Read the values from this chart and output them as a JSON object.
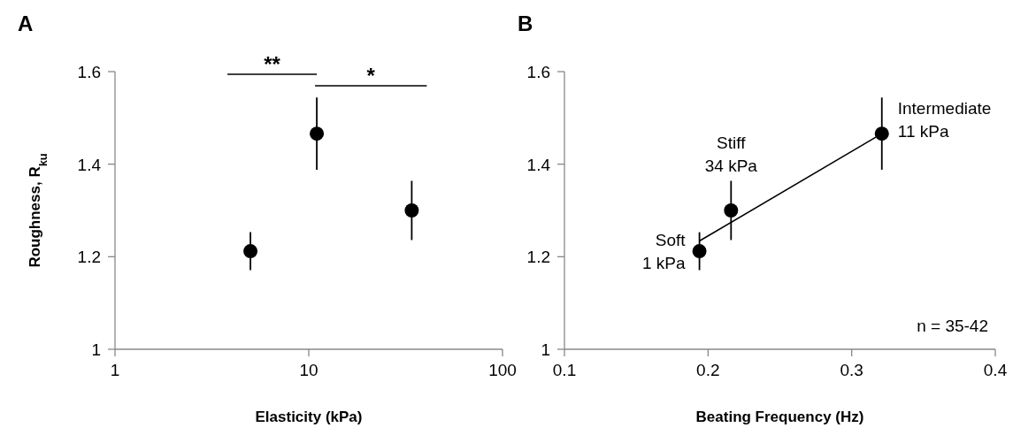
{
  "chart_data": [
    {
      "type": "scatter",
      "title": "A",
      "xlabel": "Elasticity (kPa)",
      "ylabel": "Roughness, R$_{ku}$",
      "log": "x",
      "xlim": [
        1,
        100
      ],
      "xticks": [
        1,
        10,
        100
      ],
      "ylim": [
        1,
        1.6
      ],
      "yticks": [
        1,
        1.2,
        1.4,
        1.6
      ],
      "marker": "circle",
      "grid": false,
      "series": [
        {
          "color": "#000000",
          "x": [
            5,
            11,
            34
          ],
          "values": [
            1.212,
            1.466,
            1.3
          ],
          "errors": [
            0.041,
            0.078,
            0.064
          ]
        }
      ],
      "annotations": [
        "**",
        "*"
      ]
    },
    {
      "type": "scatter",
      "title": "B",
      "xlabel": "Beating Frequency (Hz)",
      "xlim": [
        0.1,
        0.4
      ],
      "xticks": [
        0.1,
        0.2,
        0.3,
        0.4
      ],
      "ylim": [
        1,
        1.6
      ],
      "yticks": [
        1,
        1.2,
        1.4,
        1.6
      ],
      "marker": "circle",
      "grid": false,
      "series": [
        {
          "color": "#000000",
          "x": [
            0.194,
            0.216,
            0.321
          ],
          "values": [
            1.212,
            1.3,
            1.466
          ],
          "errors": [
            0.041,
            0.064,
            0.078
          ]
        },
        {
          "type": "line",
          "color": "#000000",
          "x": [
            0.194,
            0.321
          ],
          "values": [
            1.234,
            1.466
          ],
          "marker": "none"
        }
      ],
      "annotations": [
        {
          "text": "Soft\n1 kPa",
          "x": 0.194,
          "y": 1.212
        },
        {
          "text": "Stiff\n34 kPa",
          "x": 0.216,
          "y": 1.3
        },
        {
          "text": "Intermediate\n11 kPa",
          "x": 0.321,
          "y": 1.466
        },
        "n = 35-42"
      ]
    }
  ]
}
